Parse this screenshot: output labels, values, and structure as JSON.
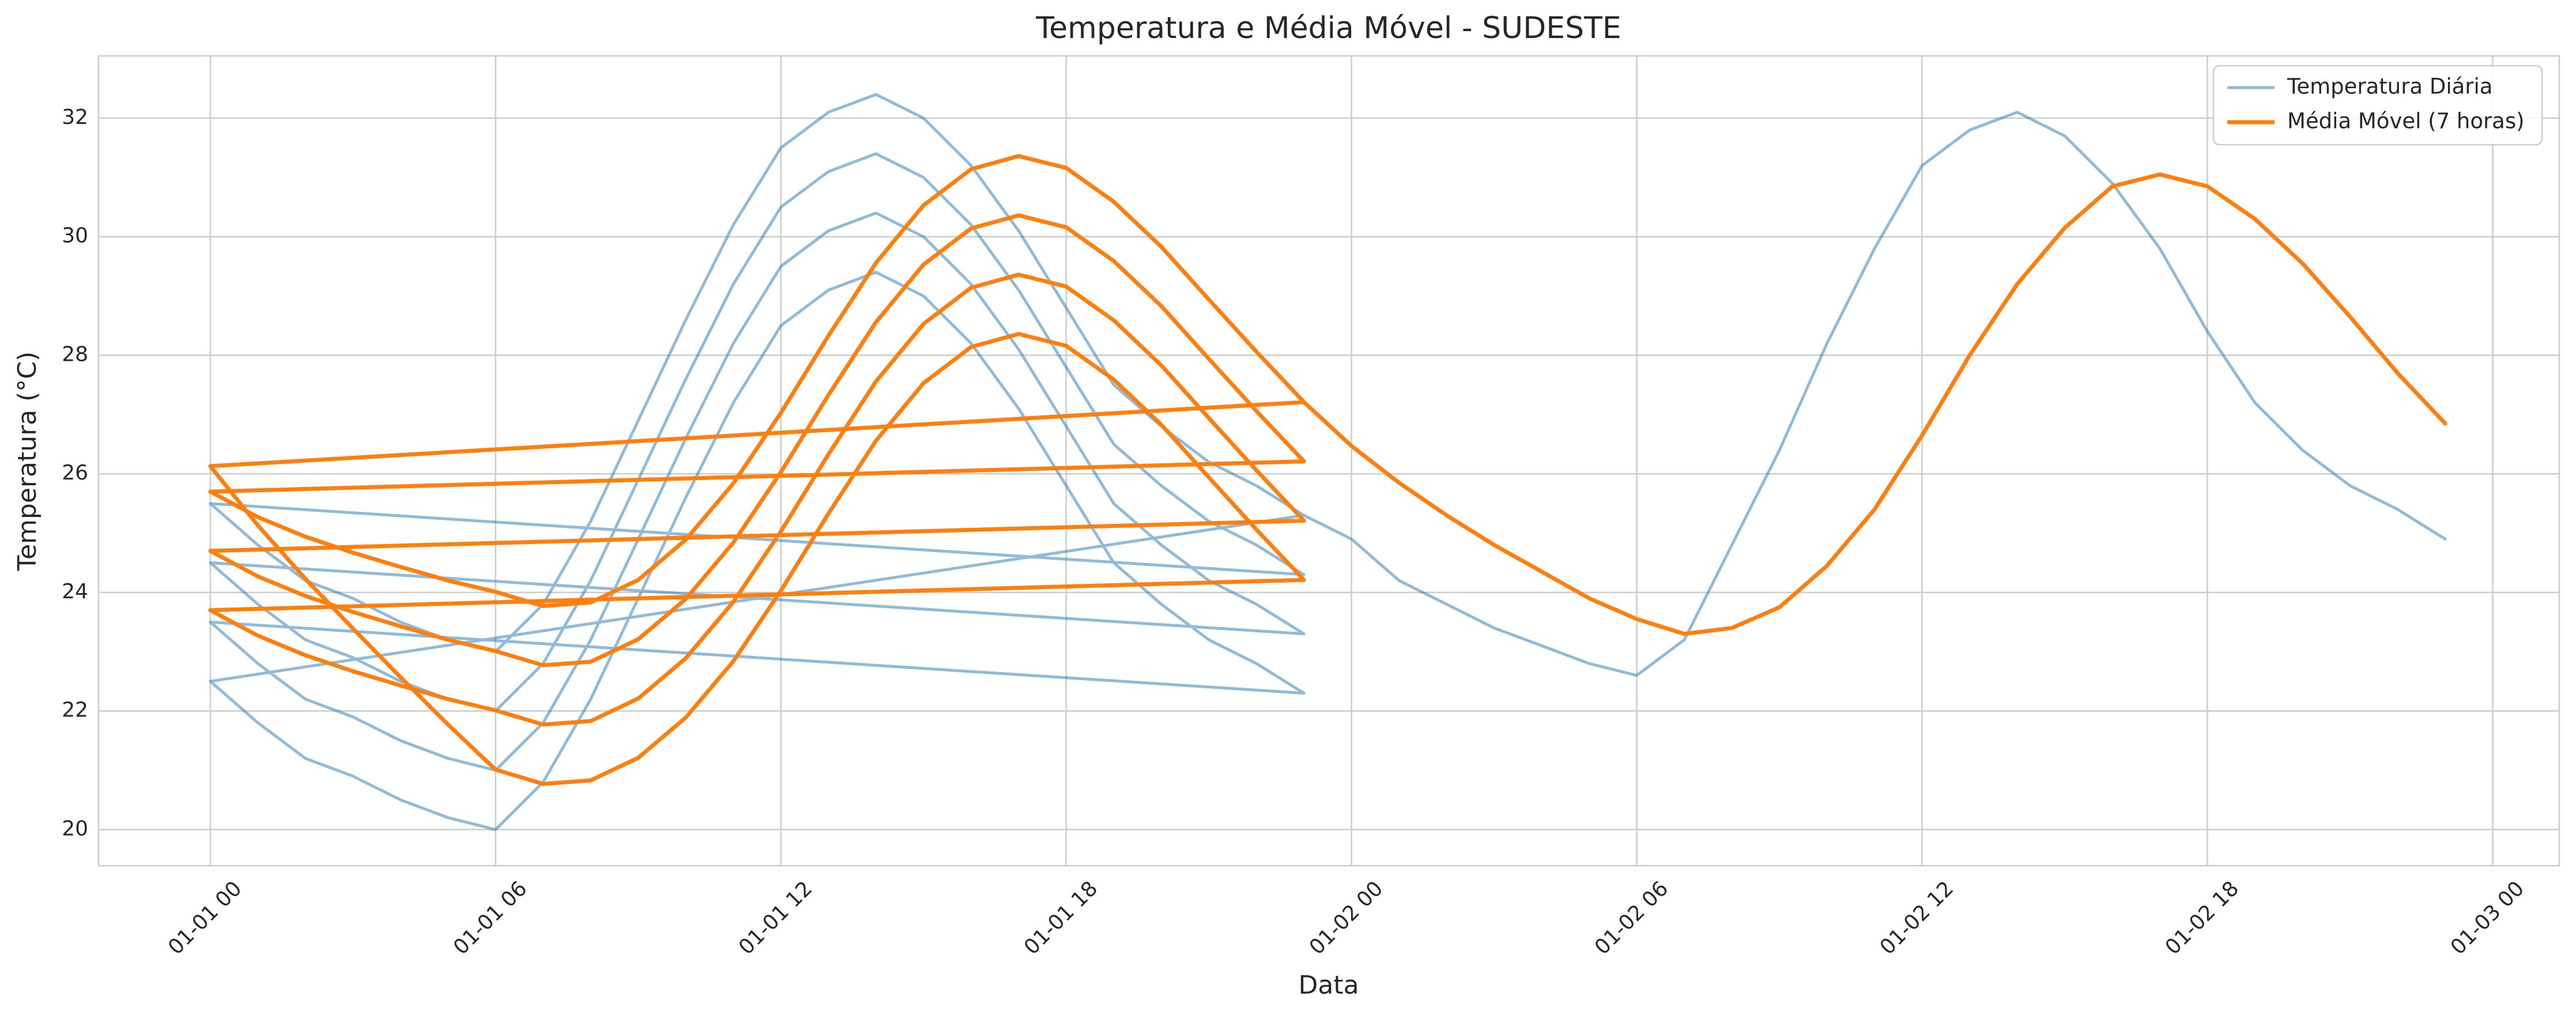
{
  "chart_data": {
    "type": "line",
    "title": "Temperatura e Média Móvel - SUDESTE",
    "x_label": "Data",
    "y_label": "Temperatura (°C)",
    "x": [
      0,
      1,
      2,
      3,
      4,
      5,
      6,
      7,
      8,
      9,
      10,
      11,
      12,
      13,
      14,
      15,
      16,
      17,
      18,
      19,
      20,
      21,
      22,
      23,
      0,
      1,
      2,
      3,
      4,
      5,
      6,
      7,
      8,
      9,
      10,
      11,
      12,
      13,
      14,
      15,
      16,
      17,
      18,
      19,
      20,
      21,
      22,
      23,
      0,
      1,
      2,
      3,
      4,
      5,
      6,
      7,
      8,
      9,
      10,
      11,
      12,
      13,
      14,
      15,
      16,
      17,
      18,
      19,
      20,
      21,
      22,
      23,
      0,
      1,
      2,
      3,
      4,
      5,
      6,
      7,
      8,
      9,
      10,
      11,
      12,
      13,
      14,
      15,
      16,
      17,
      18,
      19,
      20,
      21,
      22,
      23,
      0,
      1,
      2,
      3,
      4,
      5,
      6,
      7,
      8,
      9,
      10,
      11,
      12,
      13,
      14,
      15,
      16,
      17,
      18,
      19,
      20,
      21,
      22,
      23,
      24,
      25,
      26,
      27,
      28,
      29,
      30,
      31,
      32,
      33,
      34,
      35,
      36,
      37,
      38,
      39,
      40,
      41,
      42,
      43,
      44,
      45,
      46,
      47
    ],
    "series": [
      {
        "name": "Temperatura Diária",
        "color": "#1f77b4",
        "alpha": 0.5,
        "width": 5,
        "values": [
          25.5,
          24.8,
          24.2,
          23.9,
          23.5,
          23.2,
          23.0,
          23.8,
          25.2,
          26.9,
          28.6,
          30.2,
          31.5,
          32.1,
          32.4,
          32.0,
          31.2,
          30.1,
          28.8,
          27.5,
          26.8,
          26.2,
          25.8,
          25.3,
          22.5,
          21.8,
          21.2,
          20.9,
          20.5,
          20.2,
          20.0,
          20.8,
          22.2,
          23.9,
          25.6,
          27.2,
          28.5,
          29.1,
          29.4,
          29.0,
          28.2,
          27.1,
          25.8,
          24.5,
          23.8,
          23.2,
          22.8,
          22.3,
          23.5,
          22.8,
          22.2,
          21.9,
          21.5,
          21.2,
          21.0,
          21.8,
          23.2,
          24.9,
          26.6,
          28.2,
          29.5,
          30.1,
          30.4,
          30.0,
          29.2,
          28.1,
          26.8,
          25.5,
          24.8,
          24.2,
          23.8,
          23.3,
          24.5,
          23.8,
          23.2,
          22.9,
          22.5,
          22.2,
          22.0,
          22.8,
          24.2,
          25.9,
          27.6,
          29.2,
          30.5,
          31.1,
          31.4,
          31.0,
          30.2,
          29.1,
          27.8,
          26.5,
          25.8,
          25.2,
          24.8,
          24.3,
          25.5,
          24.8,
          24.2,
          23.9,
          23.5,
          23.2,
          23.0,
          23.8,
          25.2,
          26.9,
          28.6,
          30.2,
          31.5,
          32.1,
          32.4,
          32.0,
          31.2,
          30.1,
          28.8,
          27.5,
          26.8,
          26.2,
          25.8,
          25.3,
          24.9,
          24.2,
          23.8,
          23.4,
          23.1,
          22.8,
          22.6,
          23.2,
          24.8,
          26.4,
          28.2,
          29.8,
          31.2,
          31.8,
          32.1,
          31.7,
          30.9,
          29.8,
          28.4,
          27.2,
          26.4,
          25.8,
          25.4,
          24.9
        ]
      },
      {
        "name": "Média Móvel (7 horas)",
        "color": "#ff7f0e",
        "alpha": 1,
        "width": 7,
        "values": [
          null,
          null,
          null,
          null,
          null,
          null,
          24.01,
          23.77,
          23.83,
          24.21,
          24.89,
          25.84,
          27.03,
          28.33,
          29.56,
          30.53,
          31.14,
          31.36,
          31.16,
          30.59,
          29.83,
          28.94,
          28.06,
          27.21,
          26.13,
          25.13,
          24.23,
          23.39,
          22.57,
          21.77,
          21.01,
          20.77,
          20.83,
          21.21,
          21.89,
          22.84,
          24.03,
          25.33,
          26.56,
          27.53,
          28.14,
          28.36,
          28.16,
          27.59,
          26.83,
          25.94,
          25.06,
          24.21,
          23.7,
          23.27,
          22.94,
          22.67,
          22.43,
          22.2,
          22.01,
          21.77,
          21.83,
          22.21,
          22.89,
          23.84,
          25.03,
          26.33,
          27.56,
          28.53,
          29.14,
          29.36,
          29.16,
          28.59,
          27.83,
          26.94,
          26.06,
          25.21,
          24.7,
          24.27,
          23.94,
          23.67,
          23.43,
          23.2,
          23.01,
          22.77,
          22.83,
          23.21,
          23.89,
          24.84,
          26.03,
          27.33,
          28.56,
          29.53,
          30.14,
          30.36,
          30.16,
          29.59,
          28.83,
          27.94,
          27.06,
          26.21,
          25.7,
          25.27,
          24.94,
          24.67,
          24.43,
          24.2,
          24.01,
          23.77,
          23.83,
          24.21,
          24.89,
          25.84,
          27.03,
          28.33,
          29.56,
          30.53,
          31.14,
          31.36,
          31.16,
          30.59,
          29.83,
          28.94,
          28.06,
          27.21,
          26.47,
          25.85,
          25.3,
          24.8,
          24.35,
          23.9,
          23.55,
          23.3,
          23.4,
          23.75,
          24.45,
          25.4,
          26.65,
          28.0,
          29.2,
          30.15,
          30.85,
          31.05,
          30.85,
          30.3,
          29.55,
          28.65,
          27.7,
          26.85
        ]
      }
    ],
    "xlim": [
      -2.35,
      49.4
    ],
    "ylim": [
      19.39,
      33.05
    ],
    "xticks": [
      {
        "value": 0,
        "label": "01-01 00"
      },
      {
        "value": 6,
        "label": "01-01 06"
      },
      {
        "value": 12,
        "label": "01-01 12"
      },
      {
        "value": 18,
        "label": "01-01 18"
      },
      {
        "value": 24,
        "label": "01-02 00"
      },
      {
        "value": 30,
        "label": "01-02 06"
      },
      {
        "value": 36,
        "label": "01-02 12"
      },
      {
        "value": 42,
        "label": "01-02 18"
      },
      {
        "value": 48,
        "label": "01-03 00"
      }
    ],
    "yticks": [
      20,
      22,
      24,
      26,
      28,
      30,
      32
    ],
    "grid": true,
    "legend": "upper right"
  }
}
